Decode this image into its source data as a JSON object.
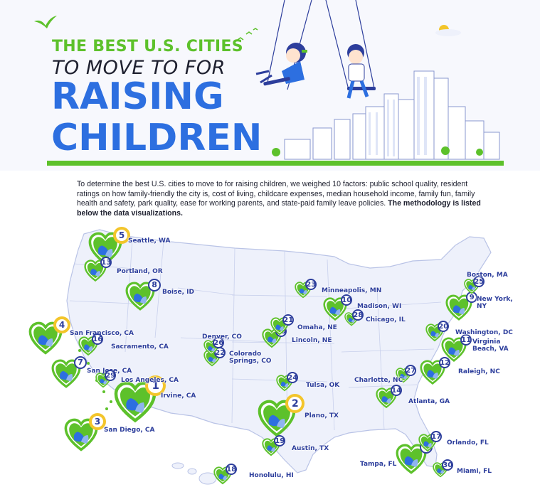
{
  "header": {
    "line1": "THE BEST U.S. CITIES",
    "line2": "TO MOVE TO FOR",
    "line3": "RAISING",
    "line4": "CHILDREN"
  },
  "intro": {
    "text": "To determine the best U.S. cities to move to for raising children, we weighed 10 factors: public school quality, resident ratings on how family-friendly the city is, cost of living, childcare expenses, median household income, family fun, family health and safety, park quality, ease for working parents, and state-paid family leave policies.",
    "bold": "The methodology is listed below the data visualizations."
  },
  "colors": {
    "green": "#5dc12b",
    "blue": "#2d6fe0",
    "navy": "#2d3e9c",
    "gold": "#f3c52b",
    "map_fill": "#eef1fb",
    "map_line": "#b9c3e6"
  },
  "cities": [
    {
      "rank": "1",
      "name": "Irvine, CA",
      "top": true
    },
    {
      "rank": "2",
      "name": "Plano, TX",
      "top": true
    },
    {
      "rank": "3",
      "name": "San Diego, CA",
      "top": true
    },
    {
      "rank": "4",
      "name": "San Francisco, CA",
      "top": true
    },
    {
      "rank": "5",
      "name": "Seattle, WA",
      "top": true
    },
    {
      "rank": "6",
      "name": "Tampa, FL",
      "top": false
    },
    {
      "rank": "7",
      "name": "San Jose, CA",
      "top": false
    },
    {
      "rank": "8",
      "name": "Boise, ID",
      "top": false
    },
    {
      "rank": "9",
      "name": "New York, NY",
      "top": false
    },
    {
      "rank": "10",
      "name": "Madison, WI",
      "top": false
    },
    {
      "rank": "11",
      "name": "Virginia Beach, VA",
      "top": false
    },
    {
      "rank": "12",
      "name": "Raleigh, NC",
      "top": false
    },
    {
      "rank": "13",
      "name": "Portland, OR",
      "top": false
    },
    {
      "rank": "14",
      "name": "Atlanta, GA",
      "top": false
    },
    {
      "rank": "15",
      "name": "Lincoln, NE",
      "top": false
    },
    {
      "rank": "16",
      "name": "Sacramento, CA",
      "top": false
    },
    {
      "rank": "17",
      "name": "Orlando, FL",
      "top": false
    },
    {
      "rank": "18",
      "name": "Honolulu, HI",
      "top": false
    },
    {
      "rank": "19",
      "name": "Austin, TX",
      "top": false
    },
    {
      "rank": "20",
      "name": "Washington, DC",
      "top": false
    },
    {
      "rank": "21",
      "name": "Omaha, NE",
      "top": false
    },
    {
      "rank": "22",
      "name": "Colorado Springs, CO",
      "top": false
    },
    {
      "rank": "23",
      "name": "Minneapolis, MN",
      "top": false
    },
    {
      "rank": "24",
      "name": "Tulsa, OK",
      "top": false
    },
    {
      "rank": "25",
      "name": "Boston, MA",
      "top": false
    },
    {
      "rank": "26",
      "name": "Denver, CO",
      "top": false
    },
    {
      "rank": "27",
      "name": "Charlotte, NC",
      "top": false
    },
    {
      "rank": "28",
      "name": "Chicago, IL",
      "top": false
    },
    {
      "rank": "29",
      "name": "Los Angeles, CA",
      "top": false
    },
    {
      "rank": "30",
      "name": "Miami, FL",
      "top": false
    }
  ]
}
